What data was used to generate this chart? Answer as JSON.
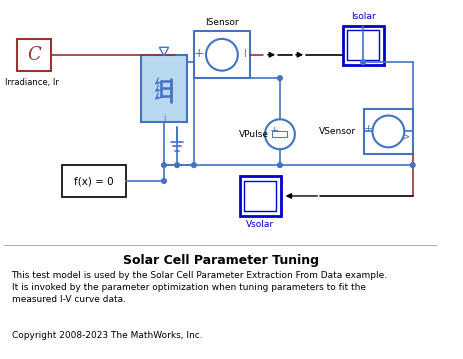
{
  "title": "Solar Cell Parameter Tuning",
  "description_lines": [
    "This test model is used by the Solar Cell Parameter Extraction From Data example.",
    "It is invoked by the parameter optimization when tuning parameters to fit the",
    "measured I-V curve data."
  ],
  "copyright": "Copyright 2008-2023 The MathWorks, Inc.",
  "bg_color": "#ffffff",
  "blue": "#4472C4",
  "scope_blue": "#0000CC",
  "red": "#993333",
  "black": "#000000",
  "light_blue_fill": "#b8d9f0",
  "gray_line": "#aaaaaa"
}
